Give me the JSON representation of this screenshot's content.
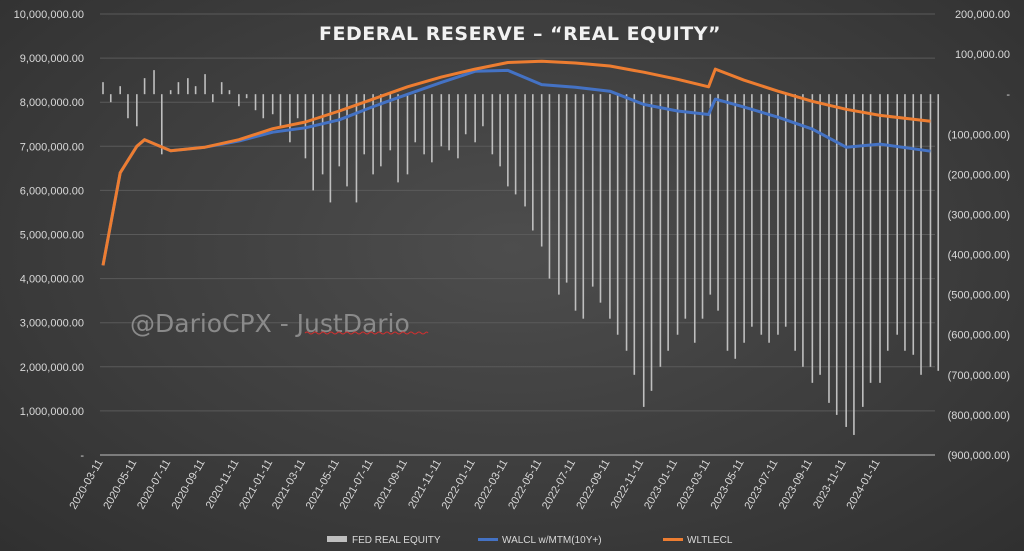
{
  "chart_data": {
    "type": "bar+line",
    "title": "FEDERAL RESERVE – “REAL EQUITY”",
    "watermark": "@DarioCPX - JustDario",
    "left_axis": {
      "ylim": [
        0,
        10000000
      ],
      "ticks": [
        "-",
        "1,000,000.00",
        "2,000,000.00",
        "3,000,000.00",
        "4,000,000.00",
        "5,000,000.00",
        "6,000,000.00",
        "7,000,000.00",
        "8,000,000.00",
        "9,000,000.00",
        "10,000,000.00"
      ]
    },
    "right_axis": {
      "ylim": [
        -900000,
        200000
      ],
      "ticks": [
        "(900,000.00)",
        "(800,000.00)",
        "(700,000.00)",
        "(600,000.00)",
        "(500,000.00)",
        "(400,000.00)",
        "(300,000.00)",
        "(200,000.00)",
        "(100,000.00)",
        "-",
        "100,000.00",
        "200,000.00"
      ]
    },
    "x_ticks": [
      "2020-03-11",
      "2020-05-11",
      "2020-07-11",
      "2020-09-11",
      "2020-11-11",
      "2021-01-11",
      "2021-03-11",
      "2021-05-11",
      "2021-07-11",
      "2021-09-11",
      "2021-11-11",
      "2022-01-11",
      "2022-03-11",
      "2022-05-11",
      "2022-07-11",
      "2022-09-11",
      "2022-11-11",
      "2023-01-11",
      "2023-03-11",
      "2023-05-11",
      "2023-07-11",
      "2023-09-11",
      "2023-11-11",
      "2024-01-11"
    ],
    "grid": true,
    "legend_position": "bottom",
    "series": [
      {
        "name": "FED REAL EQUITY",
        "type": "bar",
        "axis": "right",
        "color": "#bfbfbf",
        "start": "2020-03",
        "step": "half-month",
        "values": [
          30,
          -20,
          20,
          -60,
          -80,
          40,
          60,
          -150,
          10,
          30,
          40,
          20,
          50,
          -20,
          30,
          10,
          -30,
          -10,
          -40,
          -60,
          -50,
          -80,
          -120,
          -60,
          -160,
          -240,
          -200,
          -270,
          -180,
          -230,
          -270,
          -150,
          -200,
          -180,
          -140,
          -220,
          -200,
          -120,
          -150,
          -170,
          -130,
          -140,
          -160,
          -100,
          -120,
          -80,
          -150,
          -180,
          -230,
          -250,
          -280,
          -340,
          -380,
          -460,
          -500,
          -470,
          -540,
          -560,
          -480,
          -520,
          -560,
          -600,
          -640,
          -700,
          -780,
          -740,
          -680,
          -640,
          -600,
          -560,
          -620,
          -560,
          -500,
          -540,
          -640,
          -660,
          -620,
          -580,
          -600,
          -620,
          -600,
          -580,
          -640,
          -680,
          -720,
          -700,
          -770,
          -800,
          -830,
          -850,
          -780,
          -720,
          -720,
          -640,
          -600,
          -640,
          -650,
          -700,
          -680,
          -690
        ]
      },
      {
        "name": "WALCL w/MTM(10Y+)",
        "type": "line",
        "axis": "left",
        "color": "#4472c4",
        "points": [
          [
            "2020-03-11",
            4.3
          ],
          [
            "2020-04-11",
            6.4
          ],
          [
            "2020-05-11",
            7.0
          ],
          [
            "2020-05-25",
            7.15
          ],
          [
            "2020-07-11",
            6.9
          ],
          [
            "2020-09-11",
            6.98
          ],
          [
            "2020-11-11",
            7.12
          ],
          [
            "2021-01-11",
            7.32
          ],
          [
            "2021-03-11",
            7.42
          ],
          [
            "2021-05-11",
            7.6
          ],
          [
            "2021-07-11",
            7.9
          ],
          [
            "2021-09-11",
            8.18
          ],
          [
            "2021-11-11",
            8.45
          ],
          [
            "2022-01-11",
            8.7
          ],
          [
            "2022-03-11",
            8.72
          ],
          [
            "2022-05-11",
            8.4
          ],
          [
            "2022-07-11",
            8.34
          ],
          [
            "2022-09-11",
            8.25
          ],
          [
            "2022-11-11",
            7.95
          ],
          [
            "2023-01-11",
            7.8
          ],
          [
            "2023-03-08",
            7.72
          ],
          [
            "2023-03-20",
            8.07
          ],
          [
            "2023-05-11",
            7.89
          ],
          [
            "2023-07-11",
            7.66
          ],
          [
            "2023-09-11",
            7.39
          ],
          [
            "2023-11-11",
            6.98
          ],
          [
            "2024-01-11",
            7.05
          ],
          [
            "2024-04-11",
            6.89
          ]
        ]
      },
      {
        "name": "WLTLECL",
        "type": "line",
        "axis": "left",
        "color": "#ed7d31",
        "points": [
          [
            "2020-03-11",
            4.3
          ],
          [
            "2020-04-11",
            6.4
          ],
          [
            "2020-05-11",
            7.0
          ],
          [
            "2020-05-25",
            7.15
          ],
          [
            "2020-07-11",
            6.9
          ],
          [
            "2020-09-11",
            6.98
          ],
          [
            "2020-11-11",
            7.15
          ],
          [
            "2021-01-11",
            7.4
          ],
          [
            "2021-03-11",
            7.55
          ],
          [
            "2021-05-11",
            7.8
          ],
          [
            "2021-07-11",
            8.07
          ],
          [
            "2021-09-11",
            8.35
          ],
          [
            "2021-11-11",
            8.57
          ],
          [
            "2022-01-11",
            8.75
          ],
          [
            "2022-03-11",
            8.9
          ],
          [
            "2022-05-11",
            8.93
          ],
          [
            "2022-07-11",
            8.89
          ],
          [
            "2022-09-11",
            8.82
          ],
          [
            "2022-11-11",
            8.68
          ],
          [
            "2023-01-11",
            8.52
          ],
          [
            "2023-03-08",
            8.35
          ],
          [
            "2023-03-20",
            8.75
          ],
          [
            "2023-05-11",
            8.5
          ],
          [
            "2023-07-11",
            8.25
          ],
          [
            "2023-09-11",
            8.02
          ],
          [
            "2023-11-11",
            7.84
          ],
          [
            "2024-01-11",
            7.7
          ],
          [
            "2024-04-11",
            7.57
          ]
        ]
      }
    ]
  }
}
